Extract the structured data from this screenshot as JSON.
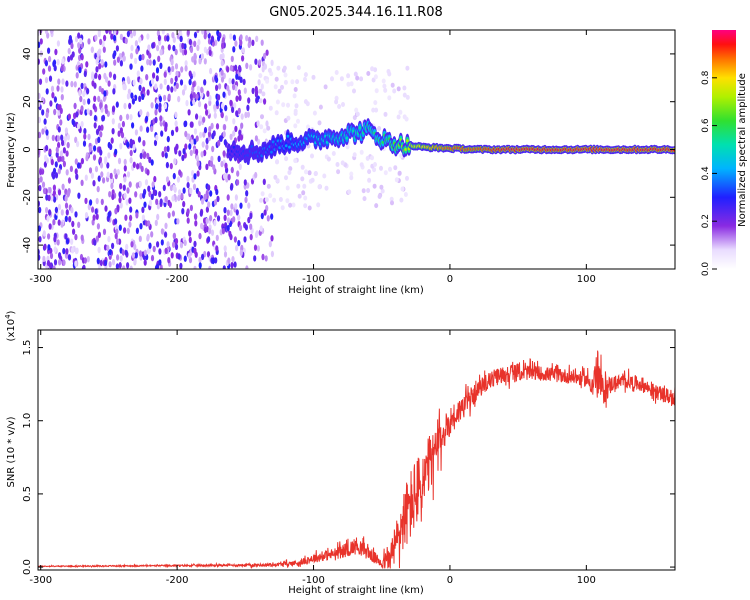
{
  "title": "GN05.2025.344.16.11.R08",
  "chart_data": [
    {
      "type": "heatmap",
      "xlabel": "Height of straight line (km)",
      "ylabel": "Frequency (Hz)",
      "xlim": [
        -302,
        165
      ],
      "ylim": [
        -50,
        50
      ],
      "xticks": [
        -300,
        -200,
        -100,
        0,
        100
      ],
      "yticks": [
        -40,
        -20,
        0,
        20,
        40
      ],
      "colorbar": {
        "label": "Normalized spectral amplitude",
        "ticks": [
          "0.0",
          "0.2",
          "0.4",
          "0.6",
          "0.8"
        ],
        "tick_values": [
          0,
          0.2,
          0.4,
          0.6,
          0.8
        ],
        "range": [
          0,
          1
        ]
      },
      "noise_region_x": [
        -302,
        -130
      ],
      "ridge": {
        "x": [
          -160,
          -140,
          -120,
          -100,
          -80,
          -60,
          -45,
          -35,
          -20,
          0,
          20,
          40,
          60,
          80,
          100,
          120,
          140,
          165
        ],
        "y": [
          0,
          -1,
          3,
          4,
          6,
          8,
          3,
          2,
          1,
          0.5,
          0,
          0,
          0,
          0,
          0,
          0,
          0,
          0
        ],
        "amplitude": [
          0.3,
          0.35,
          0.4,
          0.45,
          0.5,
          0.55,
          0.6,
          0.7,
          0.8,
          0.9,
          0.9,
          0.95,
          0.95,
          0.95,
          0.95,
          0.95,
          0.95,
          0.95
        ]
      }
    },
    {
      "type": "line",
      "xlabel": "Height of straight line (km)",
      "ylabel": "SNR (10 * v/v)",
      "y_multiplier": "(x10^4)",
      "xlim": [
        -302,
        165
      ],
      "ylim": [
        -0.02,
        1.62
      ],
      "xticks": [
        -300,
        -200,
        -100,
        0,
        100
      ],
      "yticks": [
        "0.0",
        "0.5",
        "1.0",
        "1.5"
      ],
      "ytick_values": [
        0,
        0.5,
        1.0,
        1.5
      ],
      "color": "#e8332b",
      "series": [
        {
          "x": [
            -302,
            -200,
            -130,
            -110,
            -100,
            -85,
            -75,
            -68,
            -60,
            -55,
            -50,
            -45,
            -40,
            -35,
            -30,
            -25,
            -20,
            -15,
            -10,
            -5,
            0,
            5,
            10,
            15,
            20,
            25,
            30,
            40,
            50,
            60,
            70,
            80,
            90,
            100,
            105,
            108,
            112,
            120,
            130,
            140,
            150,
            165
          ],
          "y": [
            0.005,
            0.01,
            0.015,
            0.03,
            0.06,
            0.09,
            0.12,
            0.15,
            0.1,
            0.06,
            0.03,
            0.05,
            0.15,
            0.3,
            0.4,
            0.5,
            0.55,
            0.7,
            0.8,
            0.9,
            1.0,
            1.05,
            1.1,
            1.15,
            1.2,
            1.25,
            1.28,
            1.32,
            1.33,
            1.33,
            1.32,
            1.31,
            1.3,
            1.28,
            1.25,
            1.35,
            1.2,
            1.26,
            1.27,
            1.25,
            1.2,
            1.15
          ],
          "amp": [
            0.003,
            0.005,
            0.01,
            0.02,
            0.03,
            0.04,
            0.05,
            0.06,
            0.05,
            0.04,
            0.04,
            0.08,
            0.15,
            0.2,
            0.25,
            0.25,
            0.25,
            0.2,
            0.15,
            0.12,
            0.1,
            0.09,
            0.08,
            0.07,
            0.06,
            0.06,
            0.06,
            0.06,
            0.06,
            0.05,
            0.05,
            0.05,
            0.05,
            0.05,
            0.08,
            0.15,
            0.1,
            0.05,
            0.05,
            0.05,
            0.05,
            0.05
          ]
        }
      ]
    }
  ]
}
